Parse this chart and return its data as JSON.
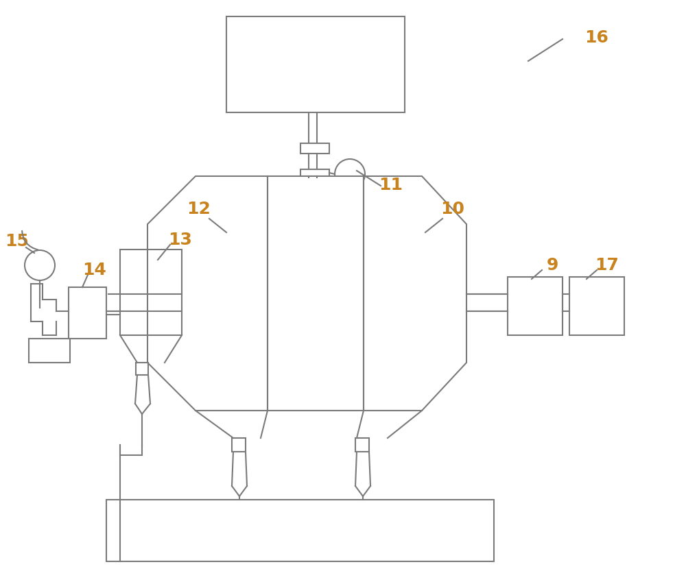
{
  "bg_color": "#ffffff",
  "line_color": "#7a7a7a",
  "label_color": "#c8821e",
  "figsize": [
    10.0,
    8.53
  ],
  "dpi": 100
}
